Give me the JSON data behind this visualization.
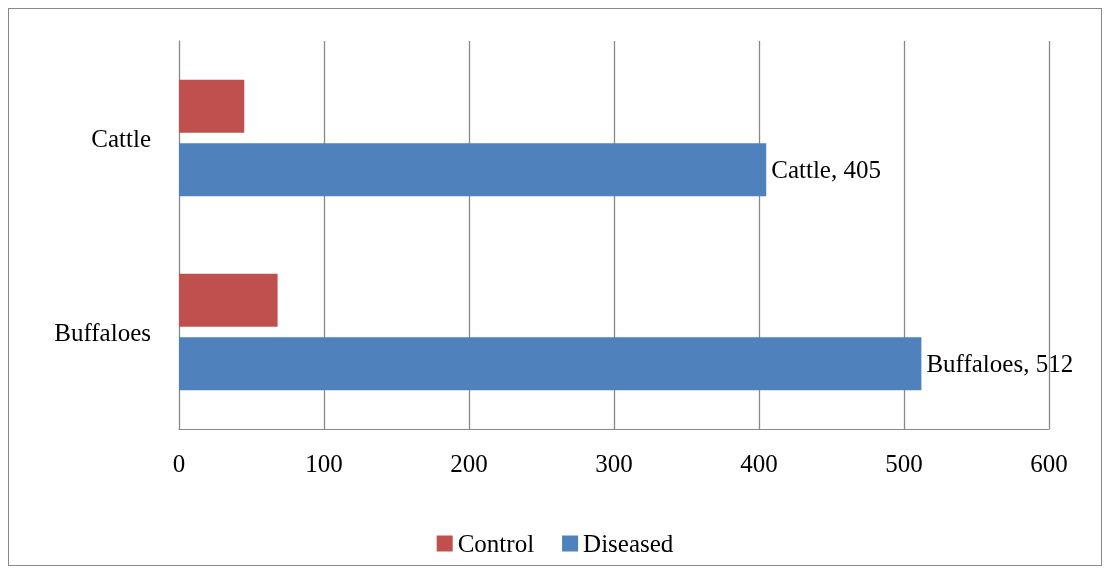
{
  "chart_data": {
    "type": "bar",
    "orientation": "horizontal",
    "categories": [
      "Cattle",
      "Buffaloes"
    ],
    "series": [
      {
        "name": "Control",
        "color": "#c0504d",
        "values": [
          45,
          68
        ]
      },
      {
        "name": "Diseased",
        "color": "#4f81bd",
        "values": [
          405,
          512
        ],
        "value_labels": [
          "Cattle, 405",
          "Buffaloes, 512"
        ]
      }
    ],
    "xlim": [
      0,
      600
    ],
    "xticks": [
      0,
      100,
      200,
      300,
      400,
      500,
      600
    ],
    "grid": "x",
    "legend": "bottom"
  }
}
